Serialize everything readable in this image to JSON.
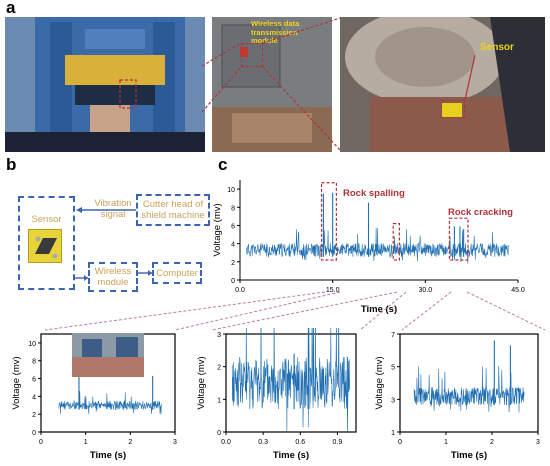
{
  "panels": {
    "a": "a",
    "b": "b",
    "c": "c"
  },
  "photo_labels": {
    "wireless": [
      "Wireless data",
      "transmission",
      "module"
    ],
    "sensor": "Sensor"
  },
  "diagram": {
    "sensor": "Sensor",
    "vibration_signal": [
      "Vibration",
      "signal"
    ],
    "cutter_head": [
      "Cutter head of",
      "shield machine"
    ],
    "wireless_module": [
      "Wireless",
      "module"
    ],
    "computer": "Computer"
  },
  "annotations": {
    "rock_spalling": "Rock spalling",
    "rock_cracking": "Rock cracking"
  },
  "colors": {
    "signal": "#1f6fb2",
    "accent": "#b0323b",
    "diagram_box": "#3b64b4",
    "diagram_text": "#c8a35a",
    "label_yellow": "#f1d21c"
  },
  "chart_data": [
    {
      "type": "line",
      "title": "",
      "xlabel": "Time (s)",
      "ylabel": "Voltage (mv)",
      "xlim": [
        0,
        45
      ],
      "ylim": [
        0,
        11
      ],
      "xticks": [
        "0.0",
        "15.0",
        "30.0",
        "45.0"
      ],
      "yticks": [
        "0",
        "2",
        "4",
        "6",
        "8",
        "10"
      ],
      "series": [
        {
          "values_description": "baseline ~3.3 mV with bursts",
          "baseline": 3.3
        }
      ],
      "events": [
        {
          "x": 13.5,
          "y": 9.5
        },
        {
          "x": 15.0,
          "y": 9.6
        },
        {
          "x": 20.8,
          "y": 8.5
        },
        {
          "x": 34.7,
          "y": 5.9
        },
        {
          "x": 35.6,
          "y": 5.9
        },
        {
          "x": 36.2,
          "y": 5.6
        }
      ]
    },
    {
      "type": "line",
      "xlabel": "Time (s)",
      "ylabel": "Voltage (mv)",
      "xlim": [
        0,
        3
      ],
      "ylim": [
        0,
        11
      ],
      "xticks": [
        "0",
        "1",
        "2",
        "3"
      ],
      "yticks": [
        "0",
        "2",
        "4",
        "6",
        "8",
        "10"
      ],
      "series": [
        {
          "baseline": 3.0
        }
      ],
      "events": [
        {
          "x": 0.85,
          "y": 9.6
        },
        {
          "x": 2.5,
          "y": 6.3
        }
      ]
    },
    {
      "type": "line",
      "xlabel": "Time (s)",
      "ylabel": "Voltage (mv)",
      "xlim": [
        0,
        1.05
      ],
      "ylim": [
        0,
        3
      ],
      "xticks": [
        "0.0",
        "0.3",
        "0.6",
        "0.9"
      ],
      "yticks": [
        "0",
        "1",
        "2",
        "3"
      ],
      "series": [
        {
          "baseline": 1.5
        }
      ],
      "events": [
        {
          "x": 0.55,
          "y": 2.4
        },
        {
          "x": 0.98,
          "y": 2.3
        }
      ]
    },
    {
      "type": "line",
      "xlabel": "Time (s)",
      "ylabel": "Voltage (mv)",
      "xlim": [
        0,
        3
      ],
      "ylim": [
        1,
        7
      ],
      "xticks": [
        "0",
        "1",
        "2",
        "3"
      ],
      "yticks": [
        "1",
        "3",
        "5",
        "7"
      ],
      "series": [
        {
          "baseline": 3.2
        }
      ],
      "events": [
        {
          "x": 2.05,
          "y": 6.6
        },
        {
          "x": 2.4,
          "y": 6.3
        }
      ]
    }
  ]
}
